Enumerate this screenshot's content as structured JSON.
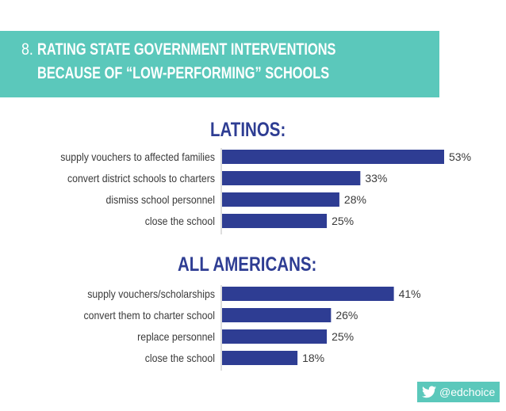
{
  "header": {
    "number": "8.",
    "title_line1": "RATING STATE GOVERNMENT INTERVENTIONS",
    "title_line2": "BECAUSE OF “LOW-PERFORMING” SCHOOLS"
  },
  "colors": {
    "banner": "#5bc8bb",
    "bar": "#2e3d93",
    "title": "#2e3d93"
  },
  "chart_data": [
    {
      "type": "bar",
      "orientation": "horizontal",
      "title": "LATINOS:",
      "categories": [
        "supply vouchers to affected families",
        "convert district schools to charters",
        "dismiss school personnel",
        "close the school"
      ],
      "values": [
        53,
        33,
        28,
        25
      ],
      "value_labels": [
        "53%",
        "33%",
        "28%",
        "25%"
      ],
      "xlim": [
        0,
        100
      ],
      "grid": false
    },
    {
      "type": "bar",
      "orientation": "horizontal",
      "title": "ALL AMERICANS:",
      "categories": [
        "supply vouchers/scholarships",
        "convert them to charter school",
        "replace personnel",
        "close the school"
      ],
      "values": [
        41,
        26,
        25,
        18
      ],
      "value_labels": [
        "41%",
        "26%",
        "25%",
        "18%"
      ],
      "xlim": [
        0,
        100
      ],
      "grid": false
    }
  ],
  "footer": {
    "icon": "twitter-bird-icon",
    "handle": "@edchoice"
  }
}
